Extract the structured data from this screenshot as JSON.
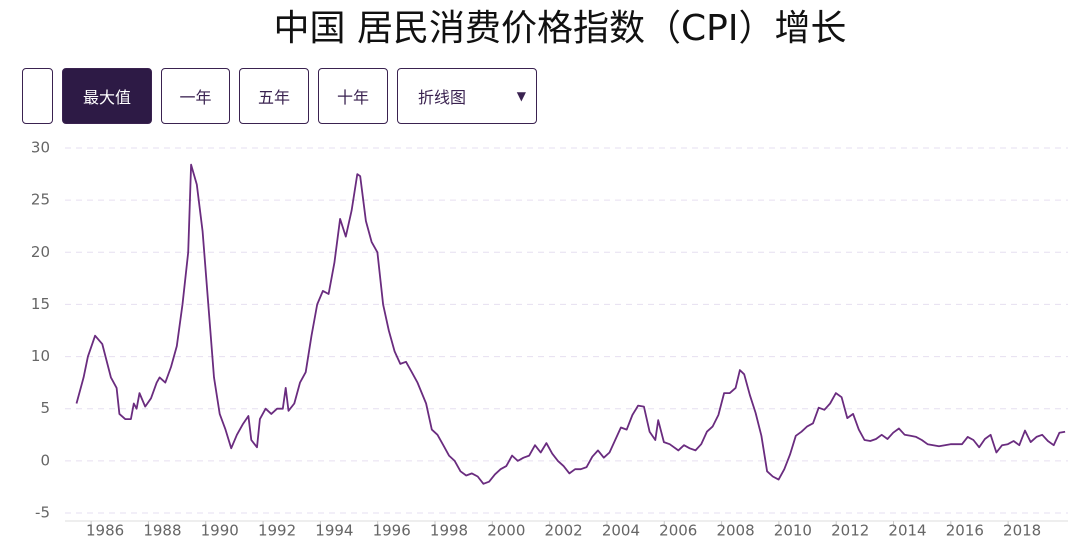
{
  "chart_data": {
    "type": "line",
    "title": "中国 居民消费价格指数（CPI）增长",
    "x": [
      1985.0,
      1985.25,
      1985.4,
      1985.65,
      1985.9,
      1986.2,
      1986.4,
      1986.5,
      1986.7,
      1986.9,
      1987.0,
      1987.1,
      1987.2,
      1987.4,
      1987.6,
      1987.8,
      1987.9,
      1988.1,
      1988.3,
      1988.5,
      1988.7,
      1988.9,
      1989.0,
      1989.2,
      1989.4,
      1989.6,
      1989.8,
      1990.0,
      1990.2,
      1990.4,
      1990.6,
      1990.8,
      1991.0,
      1991.1,
      1991.3,
      1991.4,
      1991.6,
      1991.8,
      1992.0,
      1992.2,
      1992.3,
      1992.4,
      1992.6,
      1992.8,
      1993.0,
      1993.2,
      1993.4,
      1993.6,
      1993.8,
      1994.0,
      1994.2,
      1994.4,
      1994.6,
      1994.8,
      1994.9,
      1995.1,
      1995.3,
      1995.5,
      1995.7,
      1995.9,
      1996.1,
      1996.3,
      1996.5,
      1996.7,
      1996.9,
      1997.2,
      1997.4,
      1997.6,
      1997.8,
      1998.0,
      1998.2,
      1998.4,
      1998.6,
      1998.8,
      1999.0,
      1999.2,
      1999.4,
      1999.6,
      1999.8,
      2000.0,
      2000.2,
      2000.4,
      2000.6,
      2000.8,
      2001.0,
      2001.2,
      2001.4,
      2001.6,
      2001.8,
      2002.0,
      2002.2,
      2002.4,
      2002.6,
      2002.8,
      2003.0,
      2003.2,
      2003.4,
      2003.6,
      2003.8,
      2004.0,
      2004.2,
      2004.4,
      2004.6,
      2004.8,
      2005.0,
      2005.2,
      2005.3,
      2005.5,
      2005.7,
      2006.0,
      2006.2,
      2006.4,
      2006.6,
      2006.8,
      2007.0,
      2007.2,
      2007.4,
      2007.6,
      2007.8,
      2008.0,
      2008.15,
      2008.3,
      2008.5,
      2008.7,
      2008.9,
      2009.1,
      2009.3,
      2009.5,
      2009.7,
      2009.9,
      2010.1,
      2010.3,
      2010.5,
      2010.7,
      2010.9,
      2011.1,
      2011.3,
      2011.5,
      2011.7,
      2011.9,
      2012.1,
      2012.3,
      2012.5,
      2012.7,
      2012.9,
      2013.1,
      2013.3,
      2013.5,
      2013.7,
      2013.9,
      2014.1,
      2014.3,
      2014.5,
      2014.7,
      2014.9,
      2015.1,
      2015.3,
      2015.5,
      2015.7,
      2015.9,
      2016.1,
      2016.3,
      2016.5,
      2016.7,
      2016.9,
      2017.1,
      2017.3,
      2017.5,
      2017.7,
      2017.9,
      2018.1,
      2018.3,
      2018.5,
      2018.7,
      2018.9,
      2019.1,
      2019.3,
      2019.5
    ],
    "series": [
      {
        "color": "#6a2c7f",
        "values": [
          5.5,
          8,
          10,
          12,
          11.2,
          8,
          7,
          4.5,
          4,
          4,
          5.5,
          5,
          6.5,
          5.2,
          6,
          7.5,
          8,
          7.5,
          9,
          11,
          15,
          20,
          28.4,
          26.5,
          22,
          15,
          8,
          4.5,
          3,
          1.2,
          2.5,
          3.5,
          4.3,
          2,
          1.3,
          4,
          5,
          4.5,
          5,
          5,
          7,
          4.8,
          5.5,
          7.5,
          8.5,
          12,
          15,
          16.3,
          16,
          19,
          23.2,
          21.5,
          24,
          27.5,
          27.3,
          23,
          21,
          20,
          15,
          12.5,
          10.5,
          9.3,
          9.5,
          8.5,
          7.5,
          5.5,
          3,
          2.5,
          1.5,
          0.5,
          0,
          -1,
          -1.4,
          -1.2,
          -1.5,
          -2.2,
          -2,
          -1.3,
          -0.8,
          -0.5,
          0.5,
          0,
          0.3,
          0.5,
          1.5,
          0.8,
          1.7,
          0.7,
          0,
          -0.5,
          -1.2,
          -0.8,
          -0.8,
          -0.6,
          0.4,
          1,
          0.3,
          0.8,
          2,
          3.2,
          3,
          4.4,
          5.3,
          5.2,
          2.8,
          2,
          3.9,
          1.8,
          1.6,
          1,
          1.5,
          1.2,
          1,
          1.6,
          2.8,
          3.3,
          4.4,
          6.5,
          6.5,
          7,
          8.7,
          8.3,
          6.3,
          4.6,
          2.4,
          -1,
          -1.5,
          -1.8,
          -0.8,
          0.6,
          2.4,
          2.8,
          3.3,
          3.6,
          5.1,
          4.9,
          5.5,
          6.5,
          6.1,
          4.1,
          4.5,
          3,
          2,
          1.9,
          2.1,
          2.5,
          2.1,
          2.7,
          3.1,
          2.5,
          2.4,
          2.3,
          2,
          1.6,
          1.5,
          1.4,
          1.5,
          1.6,
          1.6,
          1.6,
          2.3,
          2,
          1.3,
          2.1,
          2.5,
          0.8,
          1.5,
          1.6,
          1.9,
          1.5,
          2.9,
          1.8,
          2.3,
          2.5,
          1.9,
          1.5,
          2.7,
          2.8
        ]
      }
    ],
    "xlim": [
      1984.6,
      2019.6
    ],
    "xticks": [
      1986,
      1988,
      1990,
      1992,
      1994,
      1996,
      1998,
      2000,
      2002,
      2004,
      2006,
      2008,
      2010,
      2012,
      2014,
      2016,
      2018
    ],
    "ylim": [
      -5,
      30
    ],
    "yticks": [
      -5,
      0,
      5,
      10,
      15,
      20,
      25,
      30
    ],
    "grid": true
  },
  "controls": {
    "buttons": [
      "最大值",
      "一年",
      "五年",
      "十年"
    ],
    "select": "折线图"
  }
}
